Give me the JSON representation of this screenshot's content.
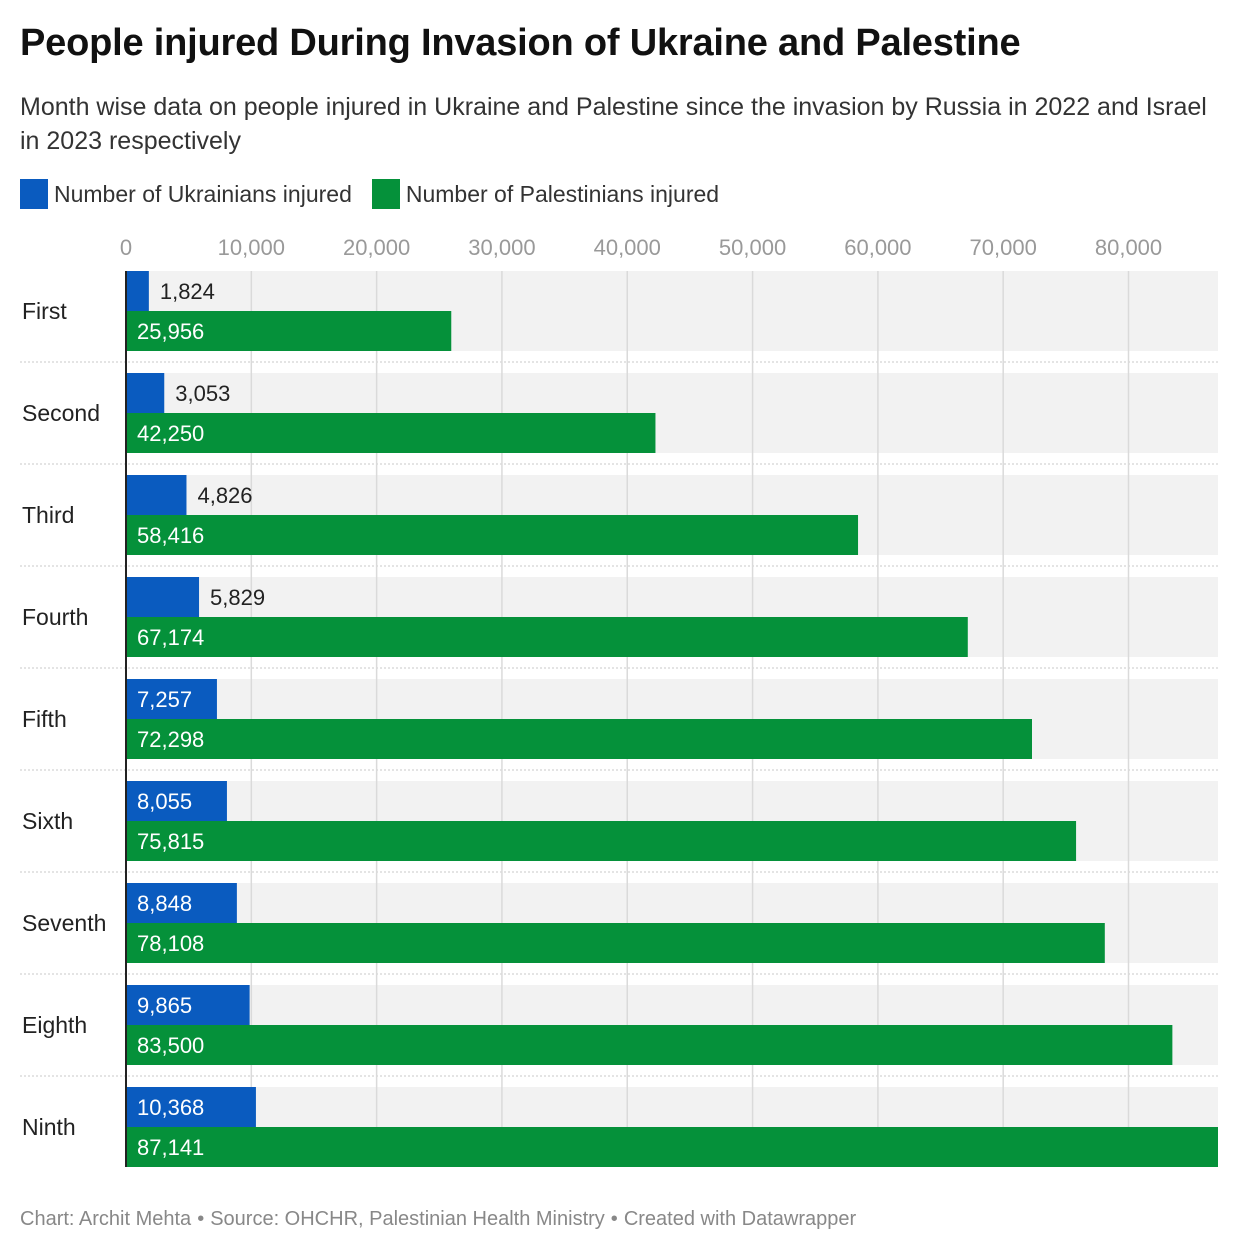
{
  "title": "People injured During Invasion of Ukraine and Palestine",
  "subtitle": "Month wise data on people injured in Ukraine and Palestine since the invasion by Russia in 2022 and Israel in 2023 respectively",
  "legend": [
    {
      "label": "Number of Ukrainians injured",
      "color": "#0a5bbf"
    },
    {
      "label": "Number of Palestinians injured",
      "color": "#05913a"
    }
  ],
  "footer": {
    "chart": "Chart: Archit Mehta",
    "source": "Source: OHCHR, Palestinian Health Ministry",
    "created": "Created with Datawrapper",
    "separator": "•"
  },
  "chart_data": {
    "type": "bar",
    "orientation": "horizontal",
    "categories": [
      "First",
      "Second",
      "Third",
      "Fourth",
      "Fifth",
      "Sixth",
      "Seventh",
      "Eighth",
      "Ninth"
    ],
    "series": [
      {
        "name": "Number of Ukrainians injured",
        "color": "#0a5bbf",
        "values": [
          1824,
          3053,
          4826,
          5829,
          7257,
          8055,
          8848,
          9865,
          10368
        ],
        "labels": [
          "1,824",
          "3,053",
          "4,826",
          "5,829",
          "7,257",
          "8,055",
          "8,848",
          "9,865",
          "10,368"
        ]
      },
      {
        "name": "Number of Palestinians injured",
        "color": "#05913a",
        "values": [
          25956,
          42250,
          58416,
          67174,
          72298,
          75815,
          78108,
          83500,
          87141
        ],
        "labels": [
          "25,956",
          "42,250",
          "58,416",
          "67,174",
          "72,298",
          "75,815",
          "78,108",
          "83,500",
          "87,141"
        ]
      }
    ],
    "xlim": [
      0,
      87141
    ],
    "ticks": [
      0,
      10000,
      20000,
      30000,
      40000,
      50000,
      60000,
      70000,
      80000
    ],
    "tick_labels": [
      "0",
      "10,000",
      "20,000",
      "30,000",
      "40,000",
      "50,000",
      "60,000",
      "70,000",
      "80,000"
    ],
    "axis_position": "top",
    "grid": true,
    "legend_position": "top-left"
  }
}
